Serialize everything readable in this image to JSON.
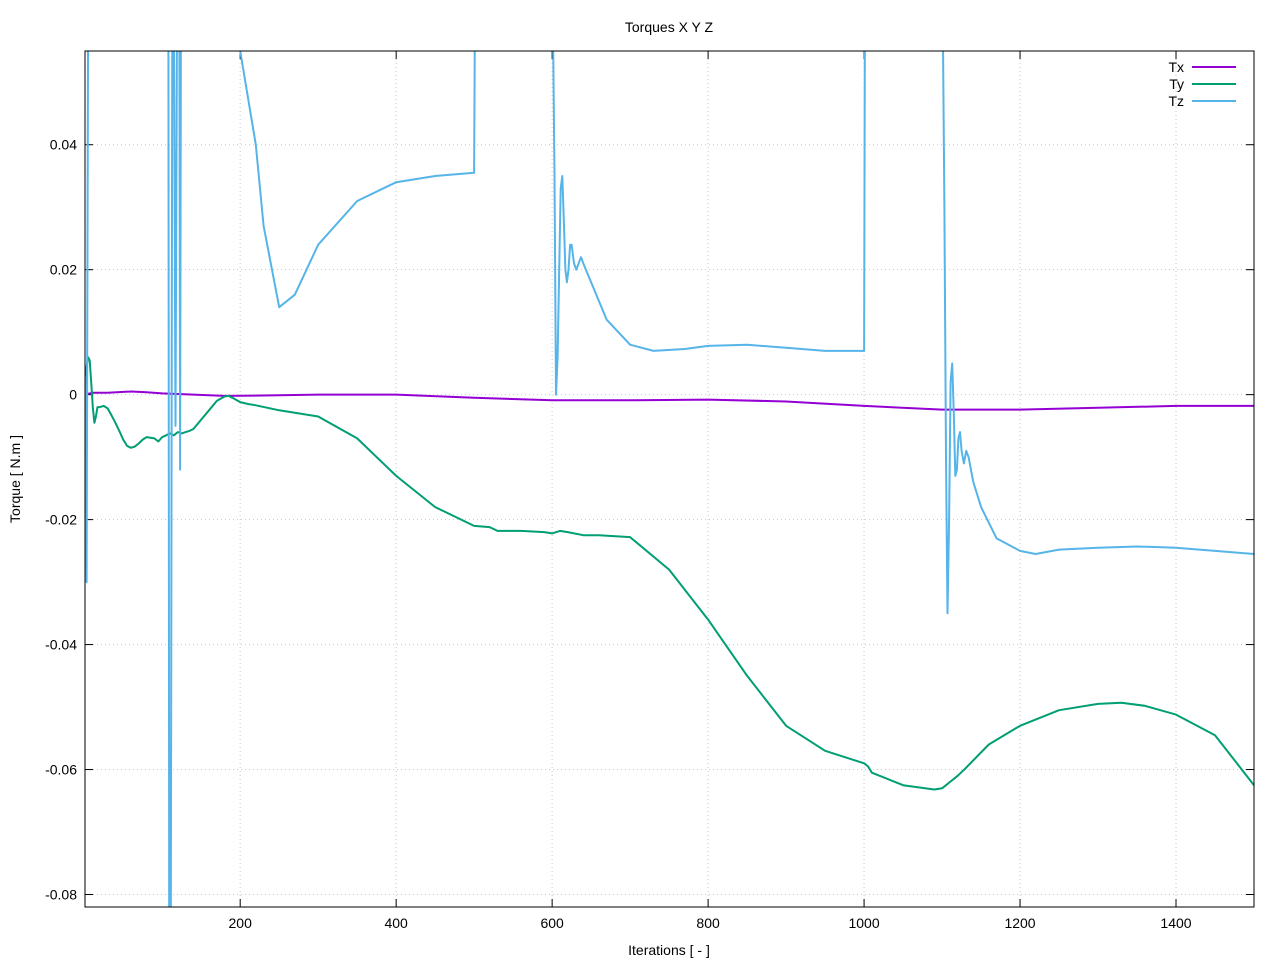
{
  "chart_data": {
    "type": "line",
    "title": "Torques X Y Z",
    "xlabel": "Iterations [ - ]",
    "ylabel": "Torque [ N.m ]",
    "xlim": [
      1,
      1500
    ],
    "ylim": [
      -0.082,
      0.055
    ],
    "xticks": [
      200,
      400,
      600,
      800,
      1000,
      1200,
      1400
    ],
    "yticks": [
      0.04,
      0.02,
      0,
      -0.02,
      -0.04,
      -0.06,
      -0.08
    ],
    "ytick_labels": [
      "0.04",
      "0.02",
      "0",
      "-0.02",
      "-0.04",
      "-0.06",
      "-0.08"
    ],
    "grid": true,
    "legend_position": "top-right",
    "series": [
      {
        "name": "Tx",
        "color": "#9400d3",
        "x": [
          1,
          10,
          30,
          60,
          80,
          100,
          140,
          180,
          250,
          300,
          400,
          500,
          600,
          700,
          800,
          900,
          1000,
          1100,
          1200,
          1300,
          1400,
          1500
        ],
        "y": [
          0.0,
          0.0003,
          0.0003,
          0.0005,
          0.0004,
          0.0002,
          0.0,
          -0.0002,
          -0.0001,
          0.0,
          0.0,
          -0.0005,
          -0.0009,
          -0.0009,
          -0.0008,
          -0.0011,
          -0.0018,
          -0.0024,
          -0.0024,
          -0.0021,
          -0.0018,
          -0.0018
        ]
      },
      {
        "name": "Ty",
        "color": "#009e73",
        "x": [
          1,
          3,
          5,
          7,
          9,
          11,
          13,
          15,
          17,
          20,
          25,
          30,
          35,
          40,
          45,
          50,
          55,
          60,
          65,
          70,
          75,
          80,
          90,
          95,
          100,
          105,
          110,
          115,
          120,
          125,
          130,
          135,
          140,
          150,
          160,
          170,
          180,
          185,
          190,
          200,
          210,
          220,
          250,
          300,
          350,
          400,
          450,
          500,
          520,
          530,
          560,
          590,
          600,
          610,
          620,
          640,
          660,
          700,
          750,
          800,
          850,
          900,
          950,
          1000,
          1005,
          1010,
          1020,
          1050,
          1090,
          1100,
          1105,
          1110,
          1120,
          1130,
          1160,
          1200,
          1250,
          1300,
          1330,
          1360,
          1400,
          1450,
          1500
        ],
        "y": [
          0.001,
          0.0045,
          0.006,
          0.0055,
          0.002,
          -0.002,
          -0.0045,
          -0.0035,
          -0.002,
          -0.002,
          -0.0018,
          -0.0022,
          -0.0033,
          -0.0045,
          -0.0058,
          -0.0072,
          -0.0082,
          -0.0085,
          -0.0083,
          -0.0078,
          -0.0072,
          -0.0068,
          -0.007,
          -0.0075,
          -0.0068,
          -0.0065,
          -0.0062,
          -0.0065,
          -0.006,
          -0.0062,
          -0.006,
          -0.0058,
          -0.0055,
          -0.004,
          -0.0025,
          -0.001,
          -0.0003,
          -0.0002,
          -0.0005,
          -0.0012,
          -0.0015,
          -0.0017,
          -0.0025,
          -0.0035,
          -0.007,
          -0.013,
          -0.018,
          -0.021,
          -0.0212,
          -0.0218,
          -0.0218,
          -0.022,
          -0.0222,
          -0.0218,
          -0.022,
          -0.0225,
          -0.0225,
          -0.0228,
          -0.028,
          -0.036,
          -0.045,
          -0.053,
          -0.057,
          -0.059,
          -0.0595,
          -0.0605,
          -0.061,
          -0.0625,
          -0.0632,
          -0.063,
          -0.0625,
          -0.062,
          -0.061,
          -0.0598,
          -0.056,
          -0.053,
          -0.0505,
          -0.0495,
          -0.0493,
          -0.0498,
          -0.0512,
          -0.0545,
          -0.0625
        ]
      },
      {
        "name": "Tz",
        "color": "#56b4e9",
        "x": [
          1,
          3,
          5,
          7,
          8,
          10,
          108,
          109,
          110,
          111,
          113,
          114,
          115,
          117,
          119,
          121,
          122,
          123,
          124,
          126,
          128,
          130,
          132,
          134,
          136,
          140,
          150,
          170,
          180,
          200,
          220,
          230,
          250,
          270,
          300,
          350,
          400,
          450,
          500,
          501,
          505,
          550,
          600,
          601,
          603,
          605,
          607,
          609,
          611,
          613,
          615,
          617,
          619,
          621,
          623,
          625,
          628,
          631,
          634,
          637,
          640,
          650,
          670,
          700,
          730,
          770,
          800,
          850,
          900,
          950,
          1000,
          1001,
          1005,
          1050,
          1100,
          1101,
          1103,
          1105,
          1107,
          1109,
          1111,
          1113,
          1115,
          1117,
          1119,
          1121,
          1123,
          1125,
          1128,
          1131,
          1134,
          1137,
          1140,
          1150,
          1170,
          1200,
          1220,
          1250,
          1300,
          1350,
          1400,
          1450,
          1500
        ],
        "y": [
          0.003,
          -0.03,
          0.06,
          0.06,
          0.06,
          0.06,
          0.06,
          -0.085,
          -0.085,
          -0.085,
          0.06,
          0.06,
          0.06,
          -0.005,
          0.06,
          0.06,
          0.06,
          -0.012,
          0.06,
          0.06,
          0.06,
          0.06,
          0.06,
          0.06,
          0.06,
          0.06,
          0.06,
          0.06,
          0.06,
          0.055,
          0.04,
          0.027,
          0.014,
          0.016,
          0.024,
          0.031,
          0.034,
          0.035,
          0.0355,
          0.06,
          0.06,
          0.06,
          0.06,
          0.06,
          0.035,
          0.0,
          0.006,
          0.02,
          0.033,
          0.035,
          0.028,
          0.02,
          0.018,
          0.02,
          0.024,
          0.024,
          0.021,
          0.02,
          0.021,
          0.022,
          0.021,
          0.018,
          0.012,
          0.008,
          0.007,
          0.0073,
          0.0078,
          0.008,
          0.0075,
          0.007,
          0.007,
          0.06,
          0.06,
          0.06,
          0.06,
          0.06,
          0.03,
          -0.01,
          -0.035,
          -0.02,
          0.002,
          0.005,
          -0.003,
          -0.013,
          -0.012,
          -0.007,
          -0.006,
          -0.009,
          -0.011,
          -0.009,
          -0.01,
          -0.012,
          -0.014,
          -0.018,
          -0.023,
          -0.025,
          -0.0255,
          -0.0248,
          -0.0245,
          -0.0243,
          -0.0245,
          -0.025,
          -0.0255
        ]
      }
    ]
  }
}
